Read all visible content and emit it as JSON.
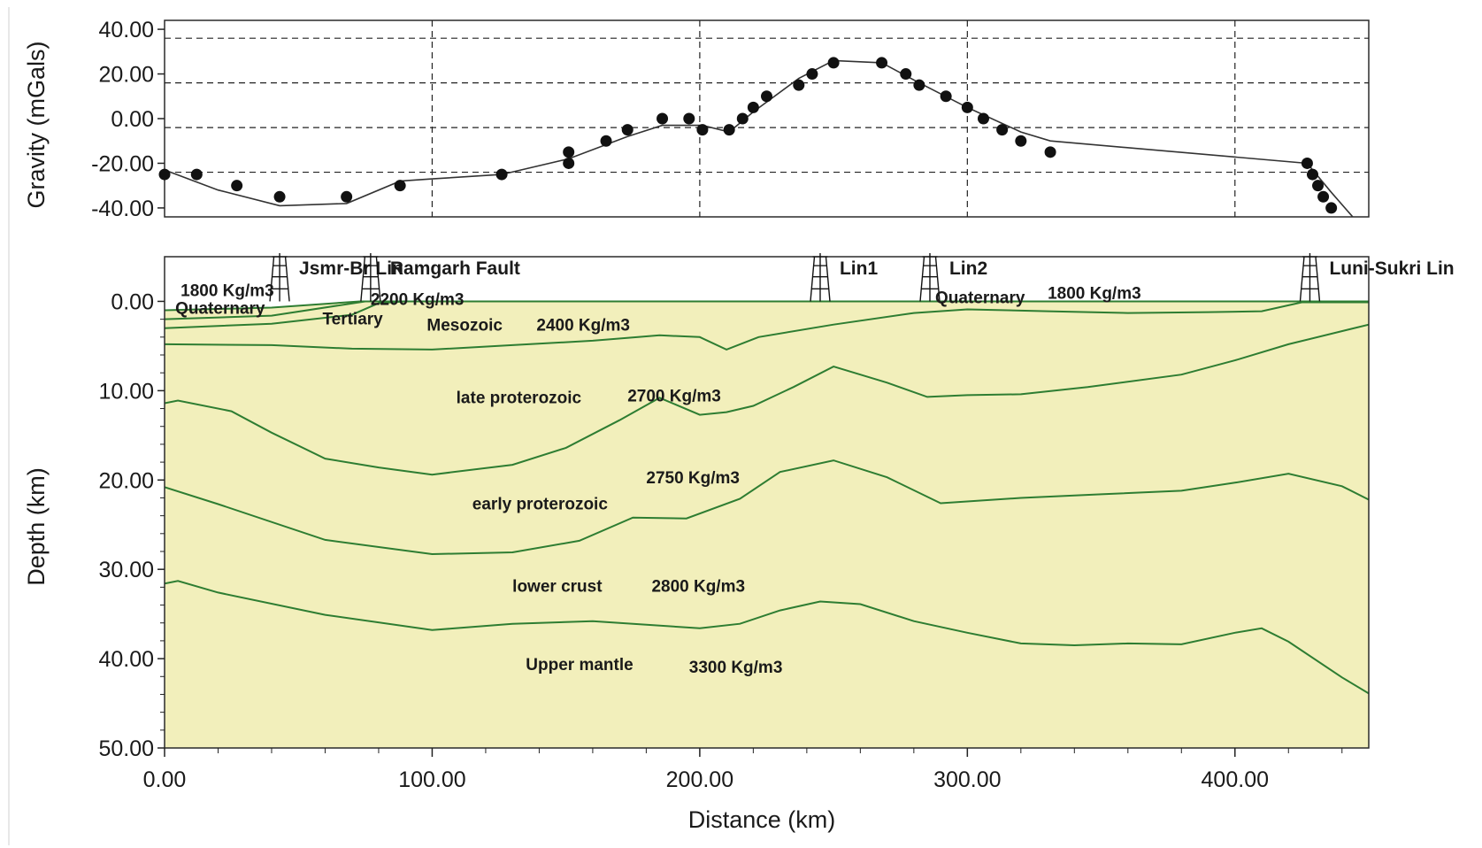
{
  "chart_data": [
    {
      "type": "scatter",
      "ylabel": "Gravity (mGals)",
      "xlim": [
        0,
        450
      ],
      "ylim": [
        -44,
        44
      ],
      "xticks": [
        0,
        100,
        200,
        300,
        400
      ],
      "yticks": [
        {
          "value": 40,
          "label": "40.00"
        },
        {
          "value": 20,
          "label": "20.00"
        },
        {
          "value": 0,
          "label": "0.00"
        },
        {
          "value": -20,
          "label": "-20.00"
        },
        {
          "value": -40,
          "label": "-40.00"
        }
      ],
      "grid_x": [
        100,
        200,
        300,
        400
      ],
      "grid_y": [
        36,
        16,
        -4,
        -24
      ],
      "series": [
        {
          "kind": "observed-points",
          "x": [
            0,
            12,
            27,
            43,
            68,
            88,
            126,
            151,
            151,
            165,
            173,
            186,
            196,
            201,
            211,
            216,
            220,
            225,
            237,
            242,
            250,
            268,
            277,
            282,
            292,
            300,
            306,
            313,
            320,
            331,
            427,
            429,
            431,
            433,
            436
          ],
          "y": [
            -25,
            -25,
            -30,
            -35,
            -35,
            -30,
            -25,
            -20,
            -15,
            -10,
            -5,
            0,
            0,
            -5,
            -5,
            0,
            5,
            10,
            15,
            20,
            25,
            25,
            20,
            15,
            10,
            5,
            0,
            -5,
            -10,
            -15,
            -20,
            -25,
            -30,
            -35,
            -40
          ]
        },
        {
          "kind": "calculated-curve",
          "x": [
            0,
            20,
            43,
            68,
            88,
            100,
            126,
            151,
            173,
            186,
            201,
            211,
            220,
            237,
            250,
            268,
            282,
            300,
            320,
            331,
            427,
            436,
            444
          ],
          "y": [
            -23,
            -32,
            -39,
            -38,
            -28,
            -27,
            -25,
            -18,
            -8,
            -3,
            -3,
            -6,
            3,
            18,
            26,
            25,
            16,
            5,
            -6,
            -10,
            -20,
            -33,
            -44
          ]
        }
      ]
    },
    {
      "type": "area",
      "xlabel": "Distance (km)",
      "ylabel": "Depth (km)",
      "xlim": [
        0,
        450
      ],
      "ylim": [
        50,
        -5
      ],
      "xticks": [
        {
          "value": 0,
          "label": "0.00"
        },
        {
          "value": 100,
          "label": "100.00"
        },
        {
          "value": 200,
          "label": "200.00"
        },
        {
          "value": 300,
          "label": "300.00"
        },
        {
          "value": 400,
          "label": "400.00"
        }
      ],
      "yticks": [
        {
          "value": 0,
          "label": "0.00"
        },
        {
          "value": 10,
          "label": "10.00"
        },
        {
          "value": 20,
          "label": "20.00"
        },
        {
          "value": 30,
          "label": "30.00"
        },
        {
          "value": 40,
          "label": "40.00"
        },
        {
          "value": 50,
          "label": "50.00"
        }
      ],
      "layers": [
        {
          "name": "Upper mantle",
          "color": "#c2c5c8",
          "top": [
            [
              0,
              31.6
            ],
            [
              5,
              31.3
            ],
            [
              20,
              32.6
            ],
            [
              60,
              35.1
            ],
            [
              100,
              36.8
            ],
            [
              130,
              36.1
            ],
            [
              160,
              35.8
            ],
            [
              200,
              36.6
            ],
            [
              215,
              36.1
            ],
            [
              230,
              34.6
            ],
            [
              245,
              33.6
            ],
            [
              260,
              33.9
            ],
            [
              280,
              35.8
            ],
            [
              300,
              37.1
            ],
            [
              320,
              38.3
            ],
            [
              340,
              38.5
            ],
            [
              360,
              38.3
            ],
            [
              380,
              38.4
            ],
            [
              400,
              37.1
            ],
            [
              410,
              36.6
            ],
            [
              420,
              38.1
            ],
            [
              440,
              42.1
            ],
            [
              450,
              43.9
            ]
          ],
          "bottom": [
            [
              0,
              50
            ],
            [
              450,
              50
            ]
          ]
        },
        {
          "name": "lower crust",
          "color": "#949597",
          "top": [
            [
              0,
              20.8
            ],
            [
              20,
              22.7
            ],
            [
              60,
              26.7
            ],
            [
              100,
              28.3
            ],
            [
              130,
              28.1
            ],
            [
              155,
              26.8
            ],
            [
              175,
              24.2
            ],
            [
              195,
              24.3
            ],
            [
              215,
              22.1
            ],
            [
              230,
              19.1
            ],
            [
              250,
              17.8
            ],
            [
              270,
              19.7
            ],
            [
              290,
              22.6
            ],
            [
              320,
              22.0
            ],
            [
              350,
              21.6
            ],
            [
              380,
              21.2
            ],
            [
              400,
              20.3
            ],
            [
              420,
              19.3
            ],
            [
              440,
              20.7
            ],
            [
              450,
              22.2
            ]
          ]
        },
        {
          "name": "early proterozoic",
          "color": "#876994",
          "top": [
            [
              0,
              11.4
            ],
            [
              5,
              11.1
            ],
            [
              25,
              12.3
            ],
            [
              40,
              14.7
            ],
            [
              60,
              17.6
            ],
            [
              80,
              18.6
            ],
            [
              100,
              19.4
            ],
            [
              130,
              18.3
            ],
            [
              150,
              16.4
            ],
            [
              170,
              13.3
            ],
            [
              185,
              10.8
            ],
            [
              200,
              12.7
            ],
            [
              210,
              12.4
            ],
            [
              220,
              11.7
            ],
            [
              235,
              9.6
            ],
            [
              250,
              7.3
            ],
            [
              270,
              9.1
            ],
            [
              285,
              10.7
            ],
            [
              300,
              10.5
            ],
            [
              320,
              10.4
            ],
            [
              345,
              9.6
            ],
            [
              380,
              8.2
            ],
            [
              400,
              6.6
            ],
            [
              420,
              4.8
            ],
            [
              450,
              2.6
            ]
          ]
        },
        {
          "name": "late proterozoic",
          "color": "#ac9aae",
          "top": [
            [
              0,
              4.8
            ],
            [
              40,
              4.9
            ],
            [
              70,
              5.3
            ],
            [
              100,
              5.4
            ],
            [
              130,
              4.9
            ],
            [
              160,
              4.4
            ],
            [
              185,
              3.8
            ],
            [
              200,
              4.0
            ],
            [
              210,
              5.4
            ],
            [
              222,
              4.0
            ],
            [
              250,
              2.6
            ],
            [
              280,
              1.3
            ],
            [
              300,
              0.9
            ],
            [
              330,
              1.1
            ],
            [
              360,
              1.3
            ],
            [
              390,
              1.2
            ],
            [
              410,
              1.1
            ],
            [
              425,
              0.1
            ],
            [
              450,
              0.1
            ]
          ]
        },
        {
          "name": "Mesozoic",
          "color": "#f2efbb",
          "top": [
            [
              0,
              3.0
            ],
            [
              40,
              2.5
            ],
            [
              70,
              1.5
            ],
            [
              80,
              0.2
            ],
            [
              90,
              0
            ],
            [
              450,
              0
            ]
          ]
        },
        {
          "name": "Tertiary",
          "color": "#f2efbb",
          "top": [
            [
              0,
              2.0
            ],
            [
              40,
              1.6
            ],
            [
              75,
              0
            ],
            [
              90,
              0
            ]
          ]
        },
        {
          "name": "Quaternary",
          "color": "#f2efbb",
          "top": [
            [
              0,
              1.0
            ],
            [
              40,
              0.7
            ],
            [
              73,
              0
            ],
            [
              90,
              0
            ]
          ]
        }
      ],
      "boundary_color": "#2e7d32",
      "wells": [
        {
          "name": "Jsmr-Br Lin",
          "x": 43
        },
        {
          "name": "Ramgarh Fault",
          "x": 77
        },
        {
          "name": "Lin1",
          "x": 245
        },
        {
          "name": "Lin2",
          "x": 286
        },
        {
          "name": "Luni-Sukri Lin",
          "x": 428
        }
      ],
      "annotations": [
        {
          "text": "1800 Kg/m3",
          "x": 6,
          "y": -1.3
        },
        {
          "text": "Quaternary",
          "x": 4,
          "y": 0.7
        },
        {
          "text": "2200 Kg/m3",
          "x": 77,
          "y": -0.3
        },
        {
          "text": "Tertiary",
          "x": 59,
          "y": 1.9
        },
        {
          "text": "Mesozoic",
          "x": 98,
          "y": 2.6
        },
        {
          "text": "2400 Kg/m3",
          "x": 139,
          "y": 2.6
        },
        {
          "text": "Quaternary",
          "x": 288,
          "y": -0.5
        },
        {
          "text": "1800 Kg/m3",
          "x": 330,
          "y": -1.0
        },
        {
          "text": "late proterozoic",
          "x": 109,
          "y": 10.7
        },
        {
          "text": "2700 Kg/m3",
          "x": 173,
          "y": 10.5
        },
        {
          "text": "2750 Kg/m3",
          "x": 180,
          "y": 19.7
        },
        {
          "text": "early proterozoic",
          "x": 115,
          "y": 22.6
        },
        {
          "text": "lower crust",
          "x": 130,
          "y": 31.8
        },
        {
          "text": "2800 Kg/m3",
          "x": 182,
          "y": 31.8
        },
        {
          "text": "Upper mantle",
          "x": 135,
          "y": 40.6
        },
        {
          "text": "3300 Kg/m3",
          "x": 196,
          "y": 40.9
        }
      ]
    }
  ]
}
